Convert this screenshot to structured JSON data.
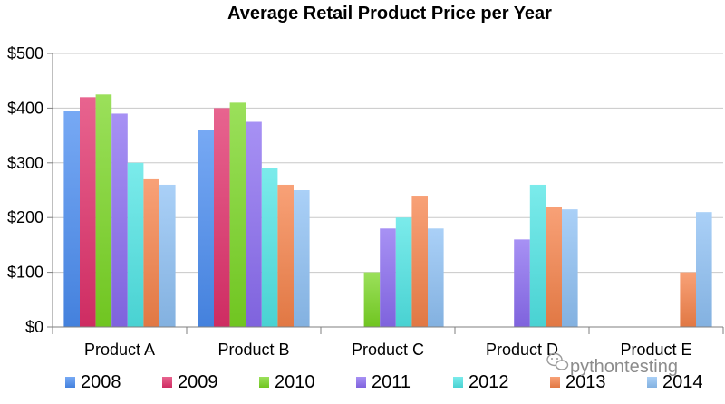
{
  "chart_data": {
    "type": "bar",
    "title": "Average Retail Product Price per Year",
    "xlabel": "",
    "ylabel": "",
    "categories": [
      "Product A",
      "Product B",
      "Product C",
      "Product D",
      "Product E"
    ],
    "yticks": [
      "$0",
      "$100",
      "$200",
      "$300",
      "$400",
      "$500"
    ],
    "ylim": [
      0,
      500
    ],
    "grid": true,
    "legend_position": "bottom",
    "series": [
      {
        "name": "2008",
        "color": "#4a8cf0",
        "values": [
          395,
          360,
          null,
          null,
          null
        ]
      },
      {
        "name": "2009",
        "color": "#e0306a",
        "values": [
          420,
          400,
          null,
          null,
          null
        ]
      },
      {
        "name": "2010",
        "color": "#7ad624",
        "values": [
          425,
          410,
          100,
          null,
          null
        ]
      },
      {
        "name": "2011",
        "color": "#8a6cf0",
        "values": [
          390,
          375,
          180,
          160,
          null
        ]
      },
      {
        "name": "2012",
        "color": "#4fe4e4",
        "values": [
          300,
          290,
          200,
          260,
          null
        ]
      },
      {
        "name": "2013",
        "color": "#f5824a",
        "values": [
          270,
          260,
          240,
          220,
          100
        ]
      },
      {
        "name": "2014",
        "color": "#8ec0f4",
        "values": [
          260,
          250,
          180,
          215,
          210
        ]
      }
    ]
  },
  "watermark": {
    "text": "pythontesting"
  }
}
